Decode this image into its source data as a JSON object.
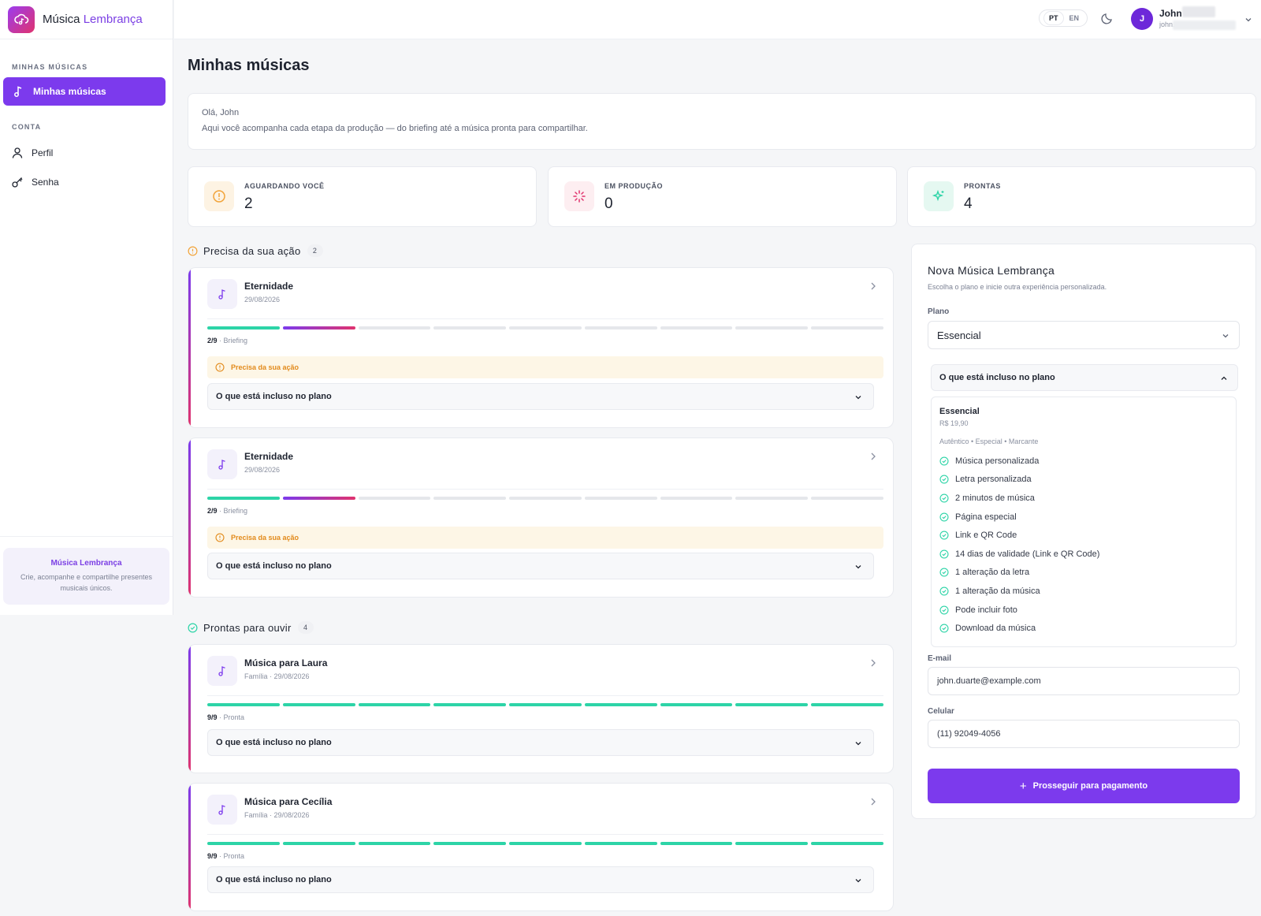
{
  "brand": {
    "name_part1": "Música",
    "name_part2": "Lembrança"
  },
  "sidebar": {
    "section_music": "MINHAS MÚSICAS",
    "active_item": "Minhas músicas",
    "section_account": "CONTA",
    "items": [
      {
        "label": "Perfil",
        "icon": "user-icon"
      },
      {
        "label": "Senha",
        "icon": "key-icon"
      }
    ],
    "footer_title": "Música Lembrança",
    "footer_text": "Crie, acompanhe e compartilhe presentes musicais únicos."
  },
  "topbar": {
    "lang_pt": "PT",
    "lang_en": "EN",
    "avatar_initial": "J",
    "user_name": "John",
    "user_email": "john."
  },
  "page": {
    "title": "Minhas músicas",
    "greeting": "Olá, John",
    "intro": "Aqui você acompanha cada etapa da produção — do briefing até a música pronta para compartilhar."
  },
  "stats": [
    {
      "label": "AGUARDANDO VOCÊ",
      "value": "2",
      "color": "#f2a43a"
    },
    {
      "label": "EM PRODUÇÃO",
      "value": "0",
      "color": "#e0336e"
    },
    {
      "label": "PRONTAS",
      "value": "4",
      "color": "#2dd4a7"
    }
  ],
  "sections": {
    "action": {
      "title": "Precisa da sua ação",
      "count": "2"
    },
    "ready": {
      "title": "Prontas para ouvir",
      "count": "4"
    }
  },
  "cards": [
    {
      "title": "Eternidade",
      "subtitle": "29/08/2026",
      "step_num": "2/9",
      "step_label": " · Briefing",
      "progress": 0.22,
      "warning": "Precisa da sua ação",
      "included": "O que está incluso no plano"
    },
    {
      "title": "Eternidade",
      "subtitle": "29/08/2026",
      "step_num": "2/9",
      "step_label": " · Briefing",
      "progress": 0.22,
      "warning": "Precisa da sua ação",
      "included": "O que está incluso no plano"
    },
    {
      "title": "Música para Laura",
      "subtitle": "Família · 29/08/2026",
      "step_num": "9/9",
      "step_label": " · Pronta",
      "progress": 1.0,
      "included": "O que está incluso no plano"
    },
    {
      "title": "Música para Cecília",
      "subtitle": "Família · 29/08/2026",
      "step_num": "9/9",
      "step_label": " · Pronta",
      "progress": 1.0,
      "included": "O que está incluso no plano"
    }
  ],
  "panel": {
    "title": "Nova Música Lembrança",
    "subtitle": "Escolha o plano e inicie outra experiência personalizada.",
    "plan_label": "Plano",
    "plan_value": "Essencial",
    "accordion_title": "O que está incluso no plano",
    "plan_name": "Essencial",
    "plan_price": "R$ 19,90",
    "plan_tags": "Autêntico • Especial • Marcante",
    "features": [
      "Música personalizada",
      "Letra personalizada",
      "2 minutos de música",
      "Página especial",
      "Link e QR Code",
      "14 dias de validade (Link e QR Code)",
      "1 alteração da letra",
      "1 alteração da música",
      "Pode incluir foto",
      "Download da música"
    ],
    "email_label": "E-mail",
    "email_value": "john.duarte@example.com",
    "phone_label": "Celular",
    "phone_value": "(11) 92049-4056",
    "submit_label": "Prosseguir para pagamento"
  },
  "colors": {
    "accent": "#7c3aed",
    "success": "#2dd4a7",
    "warning": "#f2a43a"
  }
}
